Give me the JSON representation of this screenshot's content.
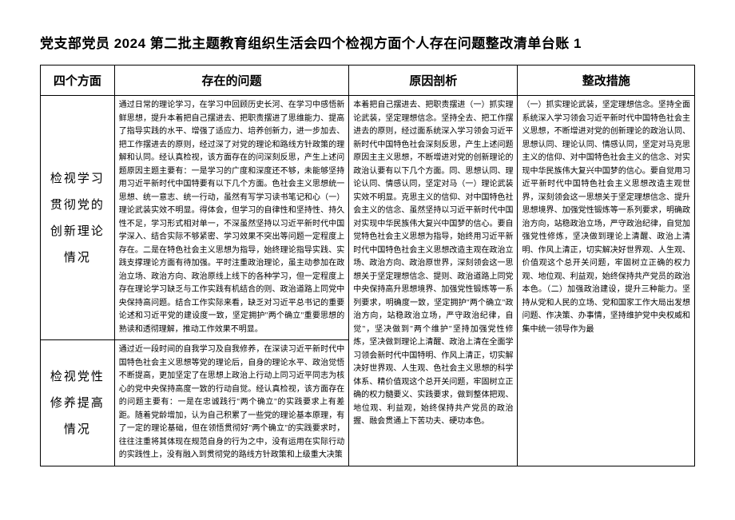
{
  "title": "党支部党员 2024 第二批主题教育组织生活会四个检视方面个人存在问题整改清单台账 1",
  "headers": {
    "aspect": "四个方面",
    "problem": "存在的问题",
    "cause": "原因剖析",
    "measure": "整改措施"
  },
  "rows": [
    {
      "aspect": "检视学习贯彻党的创新理论情况",
      "problem": "通过日常的理论学习，在学习中回顾历史长河、在学习中感悟新鲜思想，提升本着把自己摆进去、把职责摆进了思维能力、提高了指导实践的水平、增强了适应力、培养创新力，进一步加去、把工作摆进去的原则，经过深了对党的理论和路线方针政策的理解和认同。经认真检视，该方面存在的问深刻反思，产生上述问题原因主题主要有：一是学习的广度和深度还不够，未能够坚持用习近平新时代中国特要有以下几个方面。色社会主义思想统一思想、统一意志、统一行动，虽然有写学习读书笔记和心（一）理论武装实效不明显。得体会，但学习的自律性和坚持性、持久性不足，学习形式相对单一，不深虽然坚持以习近平新时代中国学深入、结合实际不够紧密、学习效果不突出等问题一定程度上存在。二是在特色社会主义思想为指导，始终理论指导实践、实践支撑理论方面有待加强。平时注重政治理论，虽主动参加在政治立场、政治方向、政治原线上线下的各种学习，但一定程度上存在理论学习缺乏与工作实践有机结合的则、政治道路上同党中央保持高问题。结合工作实际来看，缺乏对习近平总书记的重要论述和习近平党的建设度一致，坚定拥护\"两个确立\"重要思想的熟读和透彻理解，推动工作效果不明显。",
      "cause": "本着把自己摆进去、把职责摆进（一）抓实理论武装，坚定理想信念。坚持全去、把工作摆进去的原则，经过面系统深入学习领会习近平新时代中国特色社会深刻反思，产生上述问题原因主主义思想，不断增进对党的创新理论的政治认要有以下几个方面。同、思想认同、理论认同、情感认同，坚定对马（一）理论武装实效不明显。克思主义的信仰、对中国特色社会主义的信念、虽然坚持以习近平新时代中国对实现中华民族伟大复兴中国梦的信心。要自觉特色社会主义思想为指导，始终用习近平新时代中国特色社会主义思想改造主观在政治立场、政治方向、政治原世界，深刻领会这一思想关于坚定理想信念、提则、政治道路上同党中央保持高升思想境界、加强党性锻炼等一系列要求，明确度一致，坚定拥护\"两个确立\"政治方向，站稳政治立场，严守政治纪律，自觉\"，坚决做到\"两个维护\"坚持加强党性修炼，坚决做到理论上清醒、政治上清在全面学习领会新时代中国特明、作风上清正，切实解决好世界观、人生观、色社会主义思想的科学体系、精价值观这个总开关问题，牢固树立正确的权力髓要义、实践要求，做到整体把观、地位观、利益观，始终保持共产党员的政治握、融会贯通上下苦功夫、硬功本色。",
      "measure": "（一）抓实理论武装，坚定理想信念。坚持全面系统深入学习领会习近平新时代中国特色社会主义思想，不断增进对党的创新理论的政治认同、思想认同、理论认同、情感认同，坚定对马克思主义的信仰、对中国特色社会主义的信念、对实现中华民族伟大复兴中国梦的信心。要自觉用习近平新时代中国特色社会主义思想改造主观世界，深刻领会这一思想关于坚定理想信念、提升思想境界、加强党性锻炼等一系列要求，明确政治方向，站稳政治立场，严守政治纪律，自觉加强党性修炼，坚决做到理论上清醒、政治上清明、作风上清正，切实解决好世界观、人生观、价值观这个总开关问题，牢固树立正确的权力观、地位观、利益观，始终保持共产党员的政治本色。（二）加强政治建设，提升三种能力。坚持从党和人民的立场、党和国家工作大局出发想问题、作决策、办事情，坚持维护党中央权威和集中统一领导作为最"
    },
    {
      "aspect": "检视党性修养提高情况",
      "problem": "通过近一段时间的自我学习及自我修养，在深读习近平新时代中国特色社会主义思想等党的理论后，自身的理论水平、政治觉悟不断提高，更加坚定了在思想上政治上行动上同习近平同志为核心的党中央保持高度一致的行动自觉。经认真检视，该方面存在的问题主要有：一是在忠诚践行\"两个确立\"的实践要求上有差距。随着党龄增加，认为自己积累了一些党的理论基本原理，有了一定的理论基础，但在领悟贯彻好\"两个确立\"的实践要求时，往往注重将其体现在规范自身的行为之中，没有运用在实际行动的实践性上，没有融入到贯彻党的路线方针政策和上级重大决策",
      "cause": "髓要义、实践要求，做到整体把握、融会贯通上下苦功夫、硬功夫、细功夫，把理论武装转化为用实效上不够显著。",
      "measure": "（二）加强政治建设，提升三种能力。坚持从党和人民的立场、党和国家工作大局出发想问题、作决策、办事情，坚持维护党中央权威和集中统一领导作为最"
    }
  ],
  "colors": {
    "border": "#000000",
    "background": "#ffffff",
    "text": "#000000"
  },
  "typography": {
    "title_fontsize": 17,
    "header_fontsize": 15,
    "aspect_fontsize": 15,
    "content_fontsize": 10
  }
}
